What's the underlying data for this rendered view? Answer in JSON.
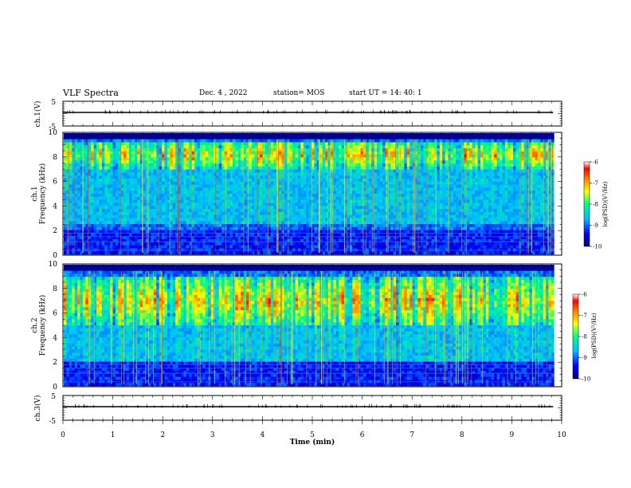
{
  "header": {
    "title": "VLF Spectra",
    "date": "Dec. 4 , 2022",
    "station": "station= MOS",
    "start_ut": "start  UT  =   14: 40: 1"
  },
  "chart_data": {
    "type": "heatmap",
    "xlabel": "Time  (min)",
    "x_ticks": [
      "0",
      "1",
      "2",
      "3",
      "4",
      "5",
      "6",
      "7",
      "8",
      "9",
      "10"
    ],
    "xlim": [
      0,
      10
    ],
    "data_end_min": 9.83,
    "panels": [
      {
        "id": "ch1-waveform",
        "type": "line",
        "ylabel": "ch.1(V)",
        "ylim": [
          -5,
          5
        ],
        "y_ticks": [
          "5",
          "-5"
        ],
        "level": 0
      },
      {
        "id": "ch1-spectrogram",
        "type": "heatmap",
        "ylabel_top": "ch.1",
        "ylabel": "Frequency  (kHz)",
        "ylim": [
          0,
          10
        ],
        "y_ticks": [
          "0",
          "2",
          "4",
          "6",
          "8",
          "10"
        ],
        "intensity_band_khz": [
          7.0,
          9.3
        ],
        "peak_khz": 8.2,
        "lower_band_khz": [
          2.6,
          6.0
        ],
        "colorbar": {
          "label": "log(PSD)(V²/Hz)",
          "ticks": [
            "-6",
            "-7",
            "-8",
            "-9",
            "-10"
          ],
          "range": [
            -10,
            -6
          ]
        }
      },
      {
        "id": "ch2-spectrogram",
        "type": "heatmap",
        "ylabel_top": "ch.2",
        "ylabel": "Frequency  (kHz)",
        "ylim": [
          0,
          10
        ],
        "y_ticks": [
          "0",
          "2",
          "4",
          "6",
          "8",
          "10"
        ],
        "intensity_band_khz": [
          5.0,
          9.0
        ],
        "peak_khz": 7.0,
        "lower_band_khz": [
          2.0,
          5.0
        ],
        "colorbar": {
          "label": "log(PSD)(V²/Hz)",
          "ticks": [
            "-6",
            "-7",
            "-8",
            "-9",
            "-10"
          ],
          "range": [
            -10,
            -6
          ]
        }
      },
      {
        "id": "ch3-waveform",
        "type": "line",
        "ylabel": "ch.3(V)",
        "ylim": [
          -5,
          5
        ],
        "y_ticks": [
          "5",
          "-5"
        ],
        "level": 0
      }
    ],
    "colors": {
      "colormap": [
        "#000080",
        "#0000ff",
        "#00bfff",
        "#00ff80",
        "#ffff00",
        "#ff8000",
        "#ff0000",
        "#ffffff"
      ]
    }
  }
}
